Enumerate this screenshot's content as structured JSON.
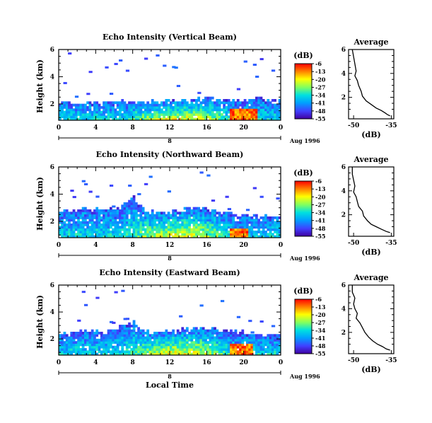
{
  "colors": {
    "colorbar_stops": [
      "#ff0000",
      "#ff8000",
      "#ffff00",
      "#80ff60",
      "#00e0e0",
      "#00a0ff",
      "#4040ff",
      "#4000a0"
    ],
    "ink": "#000000",
    "background": "#ffffff"
  },
  "shared": {
    "xlabel": "Local Time",
    "date_label": "Aug 1996",
    "ylabel": "Height (km)",
    "cb_unit": "(dB)",
    "avg_xlabel": "(dB)"
  },
  "chart_data": [
    {
      "type": "heatmap",
      "title": "Echo Intensity (Vertical Beam)",
      "xlabel": "Local Time",
      "ylabel": "Height (km)",
      "x_ticks": [
        "0",
        "4",
        "8",
        "12",
        "16",
        "20",
        "0"
      ],
      "day_label": "8",
      "xlim": [
        0,
        24
      ],
      "y_ticks": [
        "2",
        "4",
        "6"
      ],
      "ylim": [
        0.8,
        6
      ],
      "colorbar_label": "(dB)",
      "colorbar_ticks": [
        "-6",
        "-13",
        "-20",
        "-27",
        "-34",
        "-41",
        "-48",
        "-55"
      ],
      "colorbar_range": [
        -55,
        -6
      ],
      "layer_top_km": [
        2.1,
        2.1,
        2.05,
        2.0,
        2.0,
        2.05,
        2.1,
        2.1,
        2.1,
        2.05,
        2.1,
        2.15,
        2.2,
        2.2,
        2.25,
        2.3,
        2.35,
        2.3,
        2.2,
        2.1,
        2.2,
        2.3,
        2.25,
        2.15,
        2.1
      ],
      "hot_spot": {
        "x": [
          18.5,
          21.5
        ],
        "y_km": [
          0.9,
          1.6
        ]
      }
    },
    {
      "type": "heatmap",
      "title": "Echo Intensity (Northward Beam)",
      "xlabel": "Local Time",
      "ylabel": "Height (km)",
      "x_ticks": [
        "0",
        "4",
        "8",
        "12",
        "16",
        "20",
        "0"
      ],
      "day_label": "8",
      "xlim": [
        0,
        24
      ],
      "y_ticks": [
        "2",
        "4",
        "6"
      ],
      "ylim": [
        0.8,
        6
      ],
      "colorbar_label": "(dB)",
      "colorbar_ticks": [
        "-6",
        "-13",
        "-20",
        "-27",
        "-34",
        "-41",
        "-48",
        "-55"
      ],
      "colorbar_range": [
        -55,
        -6
      ],
      "layer_top_km": [
        2.6,
        2.7,
        2.8,
        2.9,
        2.8,
        2.7,
        2.8,
        3.2,
        3.8,
        2.9,
        2.6,
        2.6,
        2.7,
        2.8,
        2.9,
        2.9,
        2.8,
        2.7,
        2.6,
        2.5,
        2.4,
        2.4,
        2.3,
        2.2,
        2.2
      ],
      "hot_spot": {
        "x": [
          18.5,
          20.5
        ],
        "y_km": [
          0.9,
          1.4
        ]
      }
    },
    {
      "type": "heatmap",
      "title": "Echo Intensity (Eastward Beam)",
      "xlabel": "Local Time",
      "ylabel": "Height (km)",
      "x_ticks": [
        "0",
        "4",
        "8",
        "12",
        "16",
        "20",
        "0"
      ],
      "day_label": "8",
      "xlim": [
        0,
        24
      ],
      "y_ticks": [
        "2",
        "4",
        "6"
      ],
      "ylim": [
        0.8,
        6
      ],
      "colorbar_label": "(dB)",
      "colorbar_ticks": [
        "-6",
        "-13",
        "-20",
        "-27",
        "-34",
        "-41",
        "-48",
        "-55"
      ],
      "colorbar_range": [
        -55,
        -6
      ],
      "layer_top_km": [
        2.3,
        2.4,
        2.5,
        2.6,
        2.5,
        2.4,
        2.6,
        2.9,
        3.2,
        2.6,
        2.4,
        2.4,
        2.5,
        2.6,
        2.8,
        2.8,
        2.7,
        2.6,
        2.5,
        2.5,
        2.4,
        2.3,
        2.3,
        2.2,
        2.2
      ],
      "hot_spot": {
        "x": [
          18.5,
          21.0
        ],
        "y_km": [
          0.9,
          1.5
        ]
      }
    },
    {
      "type": "line",
      "title": "Average",
      "xlabel": "(dB)",
      "x_ticks": [
        "-50",
        "-35"
      ],
      "xlim": [
        -52,
        -34
      ],
      "y_ticks": [
        "2",
        "4",
        "6"
      ],
      "ylim": [
        0.2,
        6
      ],
      "x": [
        -50.5,
        -50.0,
        -49.5,
        -49.0,
        -49.5,
        -48.5,
        -48.0,
        -47.0,
        -46.5,
        -45.0,
        -43.0,
        -41.0,
        -39.0,
        -37.5,
        -36.5,
        -35.5
      ],
      "y": [
        6.0,
        5.4,
        4.8,
        4.2,
        3.8,
        3.4,
        3.0,
        2.5,
        2.1,
        1.7,
        1.4,
        1.1,
        0.9,
        0.7,
        0.55,
        0.45
      ]
    },
    {
      "type": "line",
      "title": "Average",
      "xlabel": "(dB)",
      "x_ticks": [
        "-50",
        "-35"
      ],
      "xlim": [
        -52,
        -34
      ],
      "y_ticks": [
        "2",
        "4",
        "6"
      ],
      "ylim": [
        0.2,
        6
      ],
      "x": [
        -50.5,
        -50.5,
        -50.0,
        -49.5,
        -50.0,
        -49.0,
        -48.5,
        -48.0,
        -46.5,
        -46.0,
        -44.5,
        -43.0,
        -41.0,
        -39.0,
        -37.0,
        -35.5
      ],
      "y": [
        6.0,
        5.4,
        4.9,
        4.4,
        3.9,
        3.5,
        3.1,
        2.7,
        2.3,
        1.9,
        1.5,
        1.2,
        1.0,
        0.8,
        0.6,
        0.5
      ]
    },
    {
      "type": "line",
      "title": "Average",
      "xlabel": "(dB)",
      "x_ticks": [
        "-50",
        "-35"
      ],
      "xlim": [
        -52,
        -34
      ],
      "y_ticks": [
        "2",
        "4",
        "6"
      ],
      "ylim": [
        0.2,
        6
      ],
      "x": [
        -50.5,
        -50.5,
        -49.5,
        -50.0,
        -49.5,
        -48.5,
        -49.0,
        -47.5,
        -46.5,
        -45.5,
        -44.0,
        -42.5,
        -40.5,
        -38.5,
        -37.0,
        -35.5
      ],
      "y": [
        6.0,
        5.4,
        4.9,
        4.4,
        4.0,
        3.6,
        3.2,
        2.8,
        2.4,
        2.0,
        1.6,
        1.3,
        1.0,
        0.8,
        0.6,
        0.5
      ]
    }
  ]
}
